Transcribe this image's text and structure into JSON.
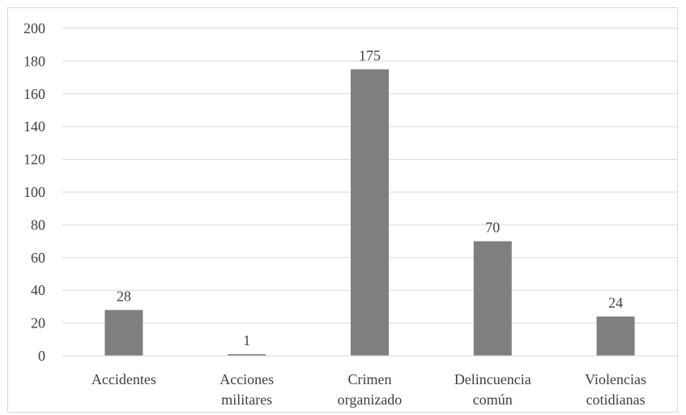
{
  "chart_data": {
    "type": "bar",
    "categories": [
      [
        "Accidentes"
      ],
      [
        "Acciones",
        "militares"
      ],
      [
        "Crimen",
        "organizado"
      ],
      [
        "Delincuencia",
        "común"
      ],
      [
        "Violencias",
        "cotidianas"
      ]
    ],
    "values": [
      28,
      1,
      175,
      70,
      24
    ],
    "data_labels": [
      "28",
      "1",
      "175",
      "70",
      "24"
    ],
    "ylim": [
      0,
      200
    ],
    "yticks": [
      0,
      20,
      40,
      60,
      80,
      100,
      120,
      140,
      160,
      180,
      200
    ],
    "grid": true,
    "legend": "none",
    "bar_color": "#7f7f7f",
    "grid_color": "#d9d9d9",
    "text_color": "#404040"
  }
}
